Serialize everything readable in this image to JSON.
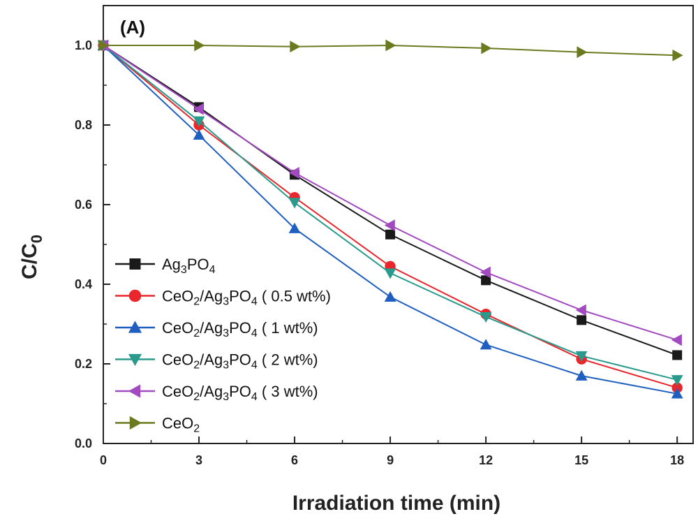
{
  "chart_data": {
    "type": "line",
    "panel_label": "(A)",
    "xlabel": "Irradiation time (min)",
    "ylabel": {
      "base": "C/C",
      "sub": "0"
    },
    "x": [
      0,
      3,
      6,
      9,
      12,
      15,
      18
    ],
    "xlim": [
      0,
      18.5
    ],
    "ylim": [
      0.0,
      1.1
    ],
    "xticks": [
      "0",
      "3",
      "6",
      "9",
      "12",
      "15",
      "18"
    ],
    "yticks": [
      "0.0",
      "0.2",
      "0.4",
      "0.6",
      "0.8",
      "1.0"
    ],
    "grid": false,
    "legend_position": "lower-left",
    "series": [
      {
        "name": "Ag3PO4",
        "legend": [
          [
            "Ag",
            ""
          ],
          [
            "3",
            "sub"
          ],
          [
            "PO",
            ""
          ],
          [
            "4",
            "sub"
          ]
        ],
        "color": "#1a1a1a",
        "marker": "square",
        "values": [
          1.0,
          0.845,
          0.675,
          0.525,
          0.41,
          0.31,
          0.222
        ]
      },
      {
        "name": "CeO2/Ag3PO4 ( 0.5 wt%)",
        "legend": [
          [
            "CeO",
            ""
          ],
          [
            "2",
            "sub"
          ],
          [
            "/Ag",
            ""
          ],
          [
            "3",
            "sub"
          ],
          [
            "PO",
            ""
          ],
          [
            "4",
            "sub"
          ],
          [
            " ( 0.5 wt%)",
            ""
          ]
        ],
        "color": "#e8262b",
        "marker": "circle",
        "values": [
          1.0,
          0.8,
          0.618,
          0.445,
          0.325,
          0.212,
          0.14
        ]
      },
      {
        "name": "CeO2/Ag3PO4 ( 1 wt%)",
        "legend": [
          [
            "CeO",
            ""
          ],
          [
            "2",
            "sub"
          ],
          [
            "/Ag",
            ""
          ],
          [
            "3",
            "sub"
          ],
          [
            "PO",
            ""
          ],
          [
            "4",
            "sub"
          ],
          [
            " ( 1 wt%)",
            ""
          ]
        ],
        "color": "#1f5fbf",
        "marker": "triangle-up",
        "values": [
          1.0,
          0.775,
          0.54,
          0.368,
          0.248,
          0.17,
          0.125
        ]
      },
      {
        "name": "CeO2/Ag3PO4 ( 2 wt%)",
        "legend": [
          [
            "CeO",
            ""
          ],
          [
            "2",
            "sub"
          ],
          [
            "/Ag",
            ""
          ],
          [
            "3",
            "sub"
          ],
          [
            "PO",
            ""
          ],
          [
            "4",
            "sub"
          ],
          [
            " ( 2 wt%)",
            ""
          ]
        ],
        "color": "#2a9a8c",
        "marker": "triangle-down",
        "values": [
          1.0,
          0.81,
          0.605,
          0.428,
          0.318,
          0.22,
          0.16
        ]
      },
      {
        "name": "CeO2/Ag3PO4 ( 3 wt%)",
        "legend": [
          [
            "CeO",
            ""
          ],
          [
            "2",
            "sub"
          ],
          [
            "/Ag",
            ""
          ],
          [
            "3",
            "sub"
          ],
          [
            "PO",
            ""
          ],
          [
            "4",
            "sub"
          ],
          [
            " ( 3 wt%)",
            ""
          ]
        ],
        "color": "#a24ac0",
        "marker": "triangle-left",
        "values": [
          1.0,
          0.84,
          0.68,
          0.548,
          0.43,
          0.335,
          0.26
        ]
      },
      {
        "name": "CeO2",
        "legend": [
          [
            "CeO",
            ""
          ],
          [
            "2",
            "sub"
          ]
        ],
        "color": "#6b7a1e",
        "marker": "triangle-right",
        "values": [
          1.0,
          1.0,
          0.997,
          1.0,
          0.993,
          0.983,
          0.975
        ]
      }
    ]
  }
}
